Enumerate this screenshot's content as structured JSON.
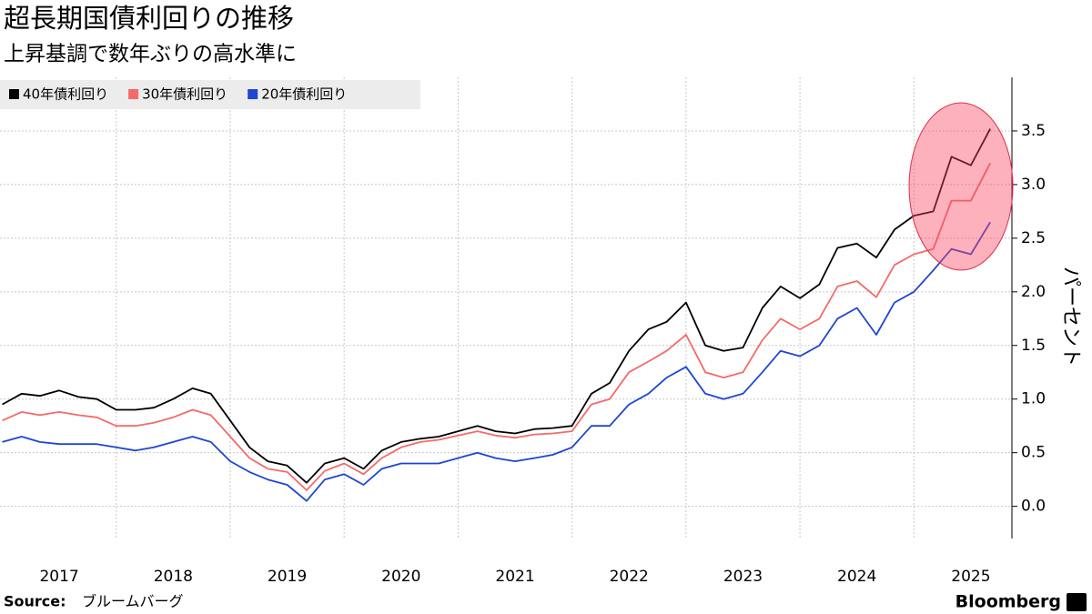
{
  "chart_data": {
    "type": "line",
    "title": "超長期国債利回りの推移",
    "subtitle": "上昇基調で数年ぶりの高水準に",
    "y_label": "パーセント",
    "source_label": "Source:",
    "source": "ブルームバーグ",
    "brand": "Bloomberg",
    "x": [
      2017.0,
      2017.17,
      2017.33,
      2017.5,
      2017.67,
      2017.83,
      2018.0,
      2018.17,
      2018.33,
      2018.5,
      2018.67,
      2018.83,
      2019.0,
      2019.17,
      2019.33,
      2019.5,
      2019.67,
      2019.83,
      2020.0,
      2020.17,
      2020.33,
      2020.5,
      2020.67,
      2020.83,
      2021.0,
      2021.17,
      2021.33,
      2021.5,
      2021.67,
      2021.83,
      2022.0,
      2022.17,
      2022.33,
      2022.5,
      2022.67,
      2022.83,
      2023.0,
      2023.17,
      2023.33,
      2023.5,
      2023.67,
      2023.83,
      2024.0,
      2024.17,
      2024.33,
      2024.5,
      2024.67,
      2024.83,
      2025.0,
      2025.17,
      2025.33,
      2025.5,
      2025.67
    ],
    "series": [
      {
        "name": "40年債利回り",
        "color": "#000000",
        "values": [
          0.95,
          1.05,
          1.03,
          1.08,
          1.02,
          1.0,
          0.9,
          0.9,
          0.92,
          1.0,
          1.1,
          1.05,
          0.8,
          0.55,
          0.42,
          0.38,
          0.22,
          0.4,
          0.45,
          0.35,
          0.52,
          0.6,
          0.63,
          0.65,
          0.7,
          0.75,
          0.7,
          0.68,
          0.72,
          0.73,
          0.75,
          1.05,
          1.15,
          1.45,
          1.65,
          1.72,
          1.9,
          1.5,
          1.45,
          1.48,
          1.85,
          2.05,
          1.94,
          2.07,
          2.41,
          2.45,
          2.32,
          2.58,
          2.71,
          2.75,
          3.26,
          3.18,
          3.52
        ]
      },
      {
        "name": "30年債利回り",
        "color": "#f46a6a",
        "values": [
          0.8,
          0.88,
          0.85,
          0.88,
          0.85,
          0.83,
          0.75,
          0.75,
          0.78,
          0.83,
          0.9,
          0.85,
          0.65,
          0.45,
          0.35,
          0.32,
          0.15,
          0.33,
          0.4,
          0.3,
          0.45,
          0.55,
          0.6,
          0.62,
          0.66,
          0.7,
          0.66,
          0.64,
          0.67,
          0.68,
          0.7,
          0.95,
          1.0,
          1.25,
          1.35,
          1.45,
          1.6,
          1.25,
          1.2,
          1.25,
          1.55,
          1.75,
          1.65,
          1.75,
          2.05,
          2.1,
          1.95,
          2.25,
          2.35,
          2.4,
          2.85,
          2.85,
          3.2
        ]
      },
      {
        "name": "20年債利回り",
        "color": "#1f45d1",
        "values": [
          0.6,
          0.65,
          0.6,
          0.58,
          0.58,
          0.58,
          0.55,
          0.52,
          0.55,
          0.6,
          0.65,
          0.6,
          0.42,
          0.32,
          0.25,
          0.2,
          0.05,
          0.25,
          0.3,
          0.2,
          0.35,
          0.4,
          0.4,
          0.4,
          0.45,
          0.5,
          0.45,
          0.42,
          0.45,
          0.48,
          0.55,
          0.75,
          0.75,
          0.95,
          1.05,
          1.2,
          1.3,
          1.05,
          1.0,
          1.05,
          1.25,
          1.45,
          1.4,
          1.5,
          1.75,
          1.85,
          1.6,
          1.9,
          2.0,
          2.2,
          2.4,
          2.35,
          2.65
        ]
      }
    ],
    "xlim": [
      2016.98,
      2025.86
    ],
    "xticks": [
      2017,
      2018,
      2019,
      2020,
      2021,
      2022,
      2023,
      2024,
      2025
    ],
    "ylim": [
      -0.3,
      4.0
    ],
    "yticks": [
      {
        "value": 0,
        "label": "0.0"
      },
      0.5,
      {
        "value": 1,
        "label": "1.0"
      },
      1.5,
      {
        "value": 2,
        "label": "2.0"
      },
      2.5,
      {
        "value": 3,
        "label": "3.0"
      },
      3.5
    ],
    "grid": true,
    "legend": "top-left"
  }
}
